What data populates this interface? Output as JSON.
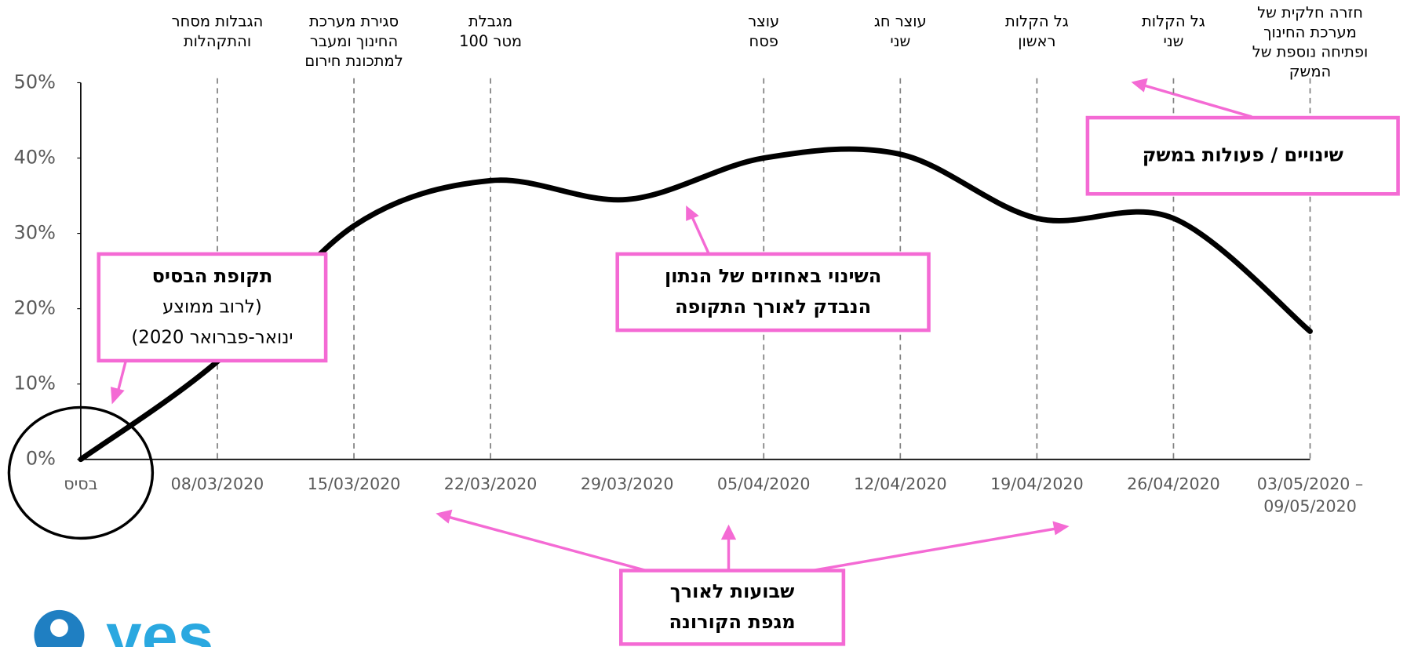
{
  "chart_data": {
    "type": "line",
    "categories": [
      "בסיס",
      "08/03/2020",
      "15/03/2020",
      "22/03/2020",
      "29/03/2020",
      "05/04/2020",
      "12/04/2020",
      "19/04/2020",
      "26/04/2020",
      "03/05/2020 –\n09/05/2020"
    ],
    "values": [
      0,
      13,
      31,
      37,
      34.5,
      40,
      40.5,
      32,
      32,
      17
    ],
    "color": "#000000",
    "event_labels": [
      null,
      "הגבלות מסחר\nוהתקהלות",
      "סגירת מערכת\nהחינוך ומעבר\nלמתכונת חירום",
      "מגבלת\nמטר 100",
      null,
      "עוצר\nפסח",
      "עוצר חג\nשני",
      "גל הקלות\nראשון",
      "גל הקלות\nשני",
      "חזרה חלקית של\nמערכת החינוך\nופתיחה נוספת של\nהמשק"
    ],
    "ylim": [
      0,
      50
    ],
    "yticks": [
      {
        "value": 0,
        "label": "0%"
      },
      {
        "value": 10,
        "label": "10%"
      },
      {
        "value": 20,
        "label": "20%"
      },
      {
        "value": 30,
        "label": "30%"
      },
      {
        "value": 40,
        "label": "40%"
      },
      {
        "value": 50,
        "label": "50%"
      }
    ],
    "annotations": [
      {
        "title": "תקופת הבסיס",
        "lines": [
          "(לרוב ממוצע",
          "ינואר-פברואר 2020)"
        ]
      },
      {
        "title": "השינוי באחוזים של הנתון\nהנבדק לאורך התקופה"
      },
      {
        "title": "שינויים / פעולות במשק"
      },
      {
        "title": "שבועות לאורך\nמגפת הקורונה"
      }
    ],
    "logo": "yes"
  }
}
